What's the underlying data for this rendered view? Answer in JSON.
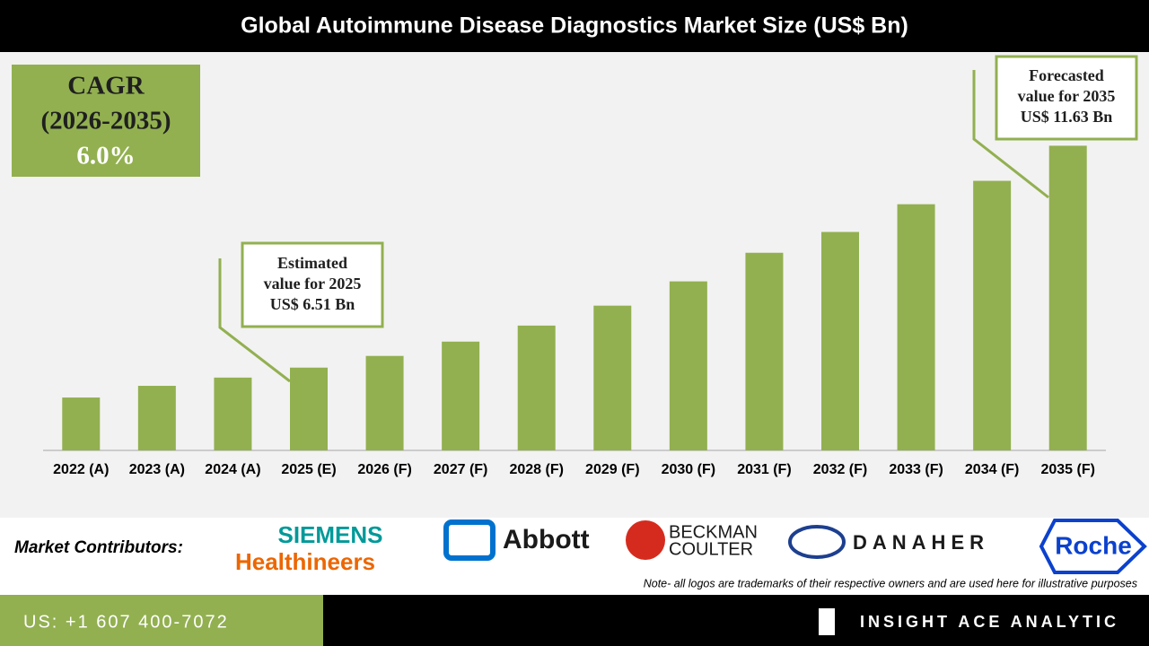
{
  "chart_data": {
    "type": "bar",
    "title": "Global Autoimmune Disease Diagnostics Market Size (US$ Bn)",
    "categories": [
      "2022 (A)",
      "2023 (A)",
      "2024 (A)",
      "2025 (E)",
      "2026 (F)",
      "2027 (F)",
      "2028 (F)",
      "2029 (F)",
      "2030 (F)",
      "2031 (F)",
      "2032 (F)",
      "2033 (F)",
      "2034 (F)",
      "2035 (F)"
    ],
    "values": [
      5.82,
      6.09,
      6.28,
      6.51,
      6.78,
      7.11,
      7.48,
      7.94,
      8.5,
      9.16,
      9.64,
      10.28,
      10.82,
      11.63
    ],
    "color": "#92b050",
    "ylim": [
      4.6,
      13.75
    ],
    "annotations": [
      {
        "lines": [
          "Estimated",
          "value for 2025",
          "US$ 6.51 Bn"
        ]
      },
      {
        "lines": [
          "Forecasted",
          "value for 2035",
          "US$ 11.63 Bn"
        ]
      }
    ]
  },
  "cagr": {
    "lines": [
      "CAGR",
      "(2026-2035)",
      "6.0%"
    ]
  },
  "contributors": {
    "label": "Market Contributors:",
    "logos": [
      "SIEMENS",
      "Healthineers",
      "Abbott",
      "BECKMAN",
      "COULTER",
      "DANAHER",
      "Roche"
    ],
    "note": "Note- all logos are trademarks of their respective owners and are used here for illustrative purposes"
  },
  "footer": {
    "phone": "US: +1 607 400-7072",
    "brand": "INSIGHT ACE ANALYTIC"
  }
}
